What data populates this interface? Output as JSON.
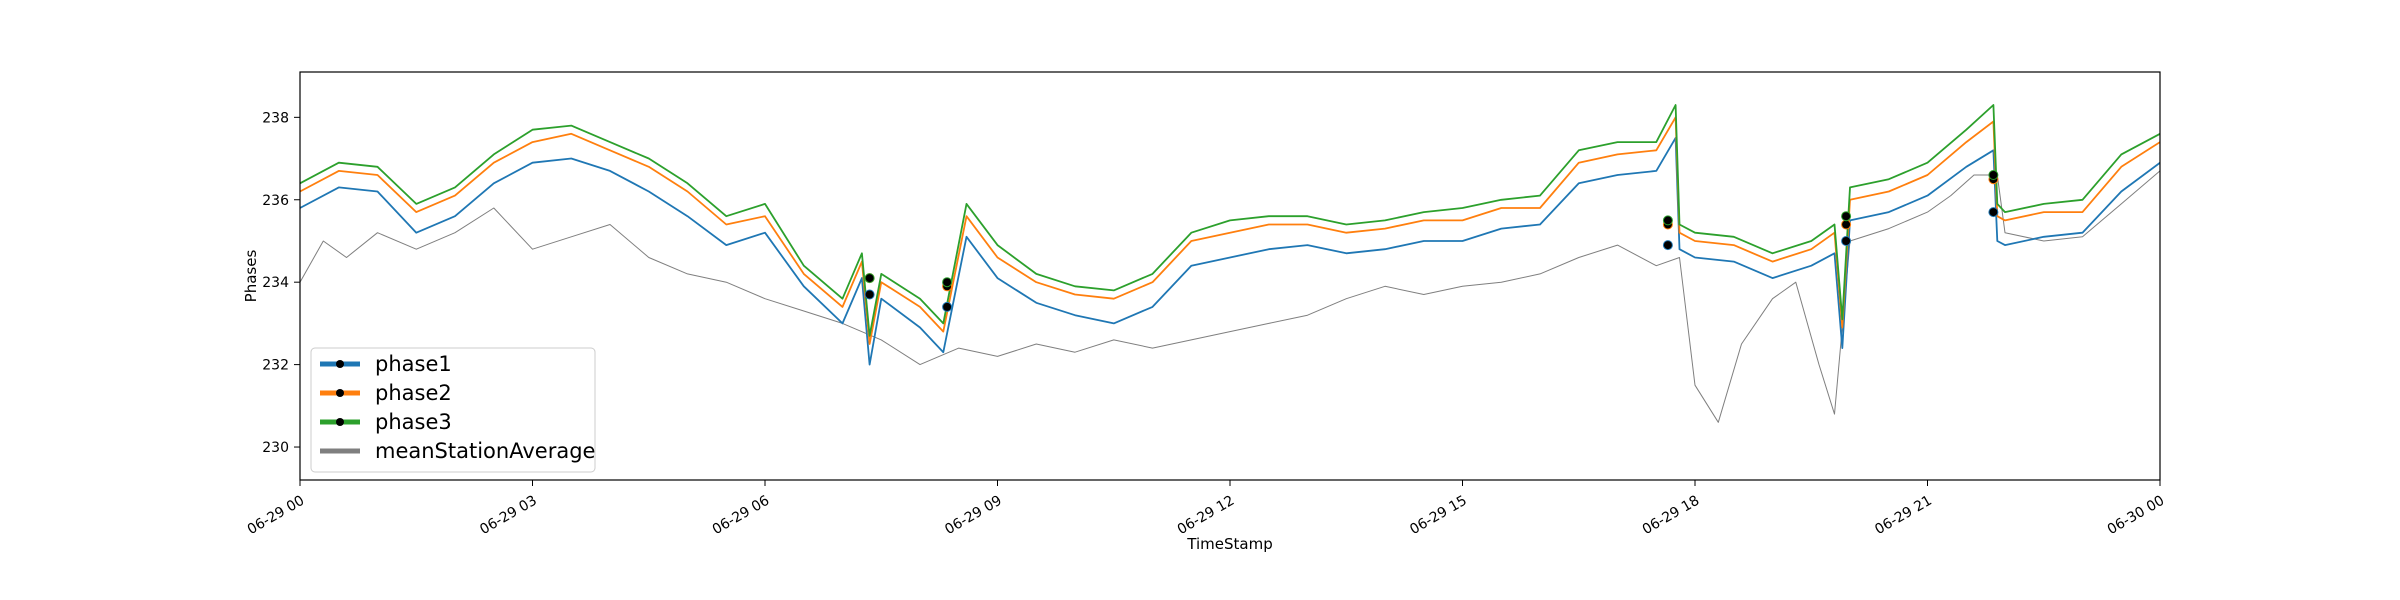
{
  "chart_data": {
    "type": "line",
    "title": "",
    "xlabel": "TimeStamp",
    "ylabel": "Phases",
    "x_range": [
      "06-29 00",
      "06-30 00"
    ],
    "ylim": [
      229.2,
      239.1
    ],
    "x_ticks": [
      {
        "hour": 0,
        "label": "06-29 00"
      },
      {
        "hour": 3,
        "label": "06-29 03"
      },
      {
        "hour": 6,
        "label": "06-29 06"
      },
      {
        "hour": 9,
        "label": "06-29 09"
      },
      {
        "hour": 12,
        "label": "06-29 12"
      },
      {
        "hour": 15,
        "label": "06-29 15"
      },
      {
        "hour": 18,
        "label": "06-29 18"
      },
      {
        "hour": 21,
        "label": "06-29 21"
      },
      {
        "hour": 24,
        "label": "06-30 00"
      }
    ],
    "y_ticks": [
      230,
      232,
      234,
      236,
      238
    ],
    "grid": false,
    "legend_position": "lower-left",
    "series": [
      {
        "name": "phase1",
        "color": "#1f77b4",
        "x": [
          0,
          0.5,
          1,
          1.5,
          2,
          2.5,
          3,
          3.5,
          4,
          4.5,
          5,
          5.5,
          6,
          6.5,
          7,
          7.25,
          7.35,
          7.5,
          8,
          8.3,
          8.6,
          9,
          9.5,
          10,
          10.5,
          11,
          11.5,
          12,
          12.5,
          13,
          13.5,
          14,
          14.5,
          15,
          15.5,
          16,
          16.5,
          17,
          17.5,
          17.75,
          17.8,
          18,
          18.5,
          19,
          19.5,
          19.8,
          19.9,
          20,
          20.5,
          21,
          21.5,
          21.85,
          21.9,
          22,
          22.5,
          23,
          23.5,
          24
        ],
        "y": [
          235.8,
          236.3,
          236.2,
          235.2,
          235.6,
          236.4,
          236.9,
          237.0,
          236.7,
          236.2,
          235.6,
          234.9,
          235.2,
          233.9,
          233.0,
          234.1,
          232.0,
          233.6,
          232.9,
          232.3,
          235.1,
          234.1,
          233.5,
          233.2,
          233.0,
          233.4,
          234.4,
          234.6,
          234.8,
          234.9,
          234.7,
          234.8,
          235.0,
          235.0,
          235.3,
          235.4,
          236.4,
          236.6,
          236.7,
          237.5,
          234.8,
          234.6,
          234.5,
          234.1,
          234.4,
          234.7,
          232.4,
          235.5,
          235.7,
          236.1,
          236.8,
          237.2,
          235.0,
          234.9,
          235.1,
          235.2,
          236.2,
          236.9
        ]
      },
      {
        "name": "phase2",
        "color": "#ff7f0e",
        "x": [
          0,
          0.5,
          1,
          1.5,
          2,
          2.5,
          3,
          3.5,
          4,
          4.5,
          5,
          5.5,
          6,
          6.5,
          7,
          7.25,
          7.35,
          7.5,
          8,
          8.3,
          8.6,
          9,
          9.5,
          10,
          10.5,
          11,
          11.5,
          12,
          12.5,
          13,
          13.5,
          14,
          14.5,
          15,
          15.5,
          16,
          16.5,
          17,
          17.5,
          17.75,
          17.8,
          18,
          18.5,
          19,
          19.5,
          19.8,
          19.9,
          20,
          20.5,
          21,
          21.5,
          21.85,
          21.9,
          22,
          22.5,
          23,
          23.5,
          24
        ],
        "y": [
          236.2,
          236.7,
          236.6,
          235.7,
          236.1,
          236.9,
          237.4,
          237.6,
          237.2,
          236.8,
          236.2,
          235.4,
          235.6,
          234.2,
          233.4,
          234.5,
          232.5,
          234.0,
          233.4,
          232.8,
          235.6,
          234.6,
          234.0,
          233.7,
          233.6,
          234.0,
          235.0,
          235.2,
          235.4,
          235.4,
          235.2,
          235.3,
          235.5,
          235.5,
          235.8,
          235.8,
          236.9,
          237.1,
          237.2,
          238.0,
          235.2,
          235.0,
          234.9,
          234.5,
          234.8,
          235.2,
          232.9,
          236.0,
          236.2,
          236.6,
          237.4,
          237.9,
          235.6,
          235.5,
          235.7,
          235.7,
          236.8,
          237.4
        ]
      },
      {
        "name": "phase3",
        "color": "#2ca02c",
        "x": [
          0,
          0.5,
          1,
          1.5,
          2,
          2.5,
          3,
          3.5,
          4,
          4.5,
          5,
          5.5,
          6,
          6.5,
          7,
          7.25,
          7.35,
          7.5,
          8,
          8.3,
          8.6,
          9,
          9.5,
          10,
          10.5,
          11,
          11.5,
          12,
          12.5,
          13,
          13.5,
          14,
          14.5,
          15,
          15.5,
          16,
          16.5,
          17,
          17.5,
          17.75,
          17.8,
          18,
          18.5,
          19,
          19.5,
          19.8,
          19.9,
          20,
          20.5,
          21,
          21.5,
          21.85,
          21.9,
          22,
          22.5,
          23,
          23.5,
          24
        ],
        "y": [
          236.4,
          236.9,
          236.8,
          235.9,
          236.3,
          237.1,
          237.7,
          237.8,
          237.4,
          237.0,
          236.4,
          235.6,
          235.9,
          234.4,
          233.6,
          234.7,
          232.7,
          234.2,
          233.6,
          233.0,
          235.9,
          234.9,
          234.2,
          233.9,
          233.8,
          234.2,
          235.2,
          235.5,
          235.6,
          235.6,
          235.4,
          235.5,
          235.7,
          235.8,
          236.0,
          236.1,
          237.2,
          237.4,
          237.4,
          238.3,
          235.4,
          235.2,
          235.1,
          234.7,
          235.0,
          235.4,
          233.1,
          236.3,
          236.5,
          236.9,
          237.7,
          238.3,
          235.9,
          235.7,
          235.9,
          236.0,
          237.1,
          237.6
        ]
      },
      {
        "name": "meanStationAverage",
        "color": "#7f7f7f",
        "x": [
          0,
          0.3,
          0.6,
          1,
          1.5,
          2,
          2.5,
          3,
          3.5,
          4,
          4.5,
          5,
          5.5,
          6,
          6.5,
          7,
          7.5,
          8,
          8.5,
          9,
          9.5,
          10,
          10.5,
          11,
          11.5,
          12,
          12.5,
          13,
          13.5,
          14,
          14.5,
          15,
          15.5,
          16,
          16.5,
          17,
          17.5,
          17.8,
          18,
          18.3,
          18.6,
          19,
          19.3,
          19.6,
          19.8,
          20,
          20.5,
          21,
          21.3,
          21.6,
          21.9,
          22,
          22.5,
          23,
          23.5,
          24
        ],
        "y": [
          234.0,
          235.0,
          234.6,
          235.2,
          234.8,
          235.2,
          235.8,
          234.8,
          235.1,
          235.4,
          234.6,
          234.2,
          234.0,
          233.6,
          233.3,
          233.0,
          232.6,
          232.0,
          232.4,
          232.2,
          232.5,
          232.3,
          232.6,
          232.4,
          232.6,
          232.8,
          233.0,
          233.2,
          233.6,
          233.9,
          233.7,
          233.9,
          234.0,
          234.2,
          234.6,
          234.9,
          234.4,
          234.6,
          231.5,
          230.6,
          232.5,
          233.6,
          234.0,
          232.0,
          230.8,
          235.0,
          235.3,
          235.7,
          236.1,
          236.6,
          236.6,
          235.2,
          235.0,
          235.1,
          235.9,
          236.7
        ]
      }
    ],
    "markers": {
      "color": "#000000",
      "points": [
        {
          "hour": 7.35,
          "values": [
            233.7,
            234.1,
            234.1
          ]
        },
        {
          "hour": 8.35,
          "values": [
            233.4,
            233.9,
            234.0
          ]
        },
        {
          "hour": 17.65,
          "values": [
            234.9,
            235.4,
            235.5
          ]
        },
        {
          "hour": 19.95,
          "values": [
            235.0,
            235.4,
            235.6
          ]
        },
        {
          "hour": 21.85,
          "values": [
            235.7,
            236.5,
            236.6
          ]
        }
      ]
    }
  }
}
